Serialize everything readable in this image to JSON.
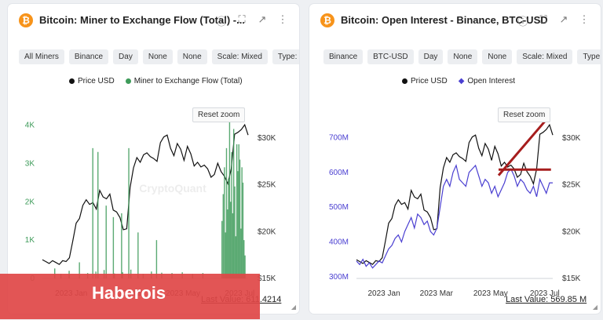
{
  "panels": [
    {
      "title": "Bitcoin: Miner to Exchange Flow (Total) -...",
      "filters": [
        "All Miners",
        "Binance",
        "Day",
        "None",
        "None",
        "Scale: Mixed",
        "Type: Bar"
      ],
      "legend": [
        {
          "label": "Price USD",
          "color": "#111111"
        },
        {
          "label": "Miner to Exchange Flow (Total)",
          "color": "#3e9b5a"
        }
      ],
      "reset_label": "Reset zoom",
      "watermark": "CryptoQuant",
      "last_value": "Last Value: 611.4214",
      "icons": [
        "info-icon",
        "expand-icon",
        "external-link-icon",
        "more-icon"
      ]
    },
    {
      "title": "Bitcoin: Open Interest - Binance, BTC-USD",
      "filters": [
        "Binance",
        "BTC-USD",
        "Day",
        "None",
        "None",
        "Scale: Mixed",
        "Type: Line"
      ],
      "legend": [
        {
          "label": "Price USD",
          "color": "#111111"
        },
        {
          "label": "Open Interest",
          "color": "#4a3fd1"
        }
      ],
      "reset_label": "Reset zoom",
      "last_value": "Last Value: 569.85 M",
      "icons": [
        "info-icon",
        "expand-icon",
        "external-link-icon",
        "more-icon"
      ]
    }
  ],
  "banner_text": "Haberois",
  "chart_data": [
    {
      "type": "bar",
      "title": "Bitcoin: Miner to Exchange Flow (Total)",
      "x_ticks": [
        "2023 Jan",
        "2023 Mar",
        "2023 May",
        "2023 Jul"
      ],
      "x_domain": [
        "2022-12-01",
        "2023-07-10"
      ],
      "y_left": {
        "ticks": [
          "0",
          "1K",
          "2K",
          "3K",
          "4K"
        ],
        "values": [
          0,
          1000,
          2000,
          3000,
          4000
        ],
        "range": [
          0,
          4400
        ],
        "color": "#3e9b5a"
      },
      "y_right": {
        "ticks": [
          "$15K",
          "$20K",
          "$25K",
          "$30K"
        ],
        "values": [
          15,
          20,
          25,
          30
        ],
        "range": [
          15,
          33
        ]
      },
      "series": [
        {
          "name": "Price USD",
          "color": "#111111",
          "values_k": [
            17.0,
            16.8,
            16.6,
            16.9,
            16.7,
            16.5,
            16.9,
            16.8,
            17.2,
            19.0,
            20.9,
            21.4,
            22.8,
            23.4,
            22.9,
            23.1,
            22.4,
            24.4,
            23.7,
            23.5,
            24.0,
            22.3,
            22.1,
            21.5,
            20.2,
            20.3,
            24.7,
            26.8,
            27.9,
            27.4,
            28.2,
            28.4,
            28.0,
            27.8,
            27.5,
            29.5,
            30.1,
            30.3,
            28.9,
            28.1,
            29.4,
            28.8,
            27.6,
            29.1,
            28.3,
            27.0,
            27.4,
            26.9,
            27.1,
            26.7,
            25.8,
            26.1,
            27.3,
            26.4,
            25.9,
            25.1,
            26.7,
            30.4,
            30.6,
            30.9,
            31.4,
            30.3
          ]
        },
        {
          "name": "Miner to Exchange Flow (Total)",
          "color": "#3e9b5a",
          "bars": [
            {
              "pos": 0.06,
              "value": 260
            },
            {
              "pos": 0.09,
              "value": 120
            },
            {
              "pos": 0.13,
              "value": 200
            },
            {
              "pos": 0.18,
              "value": 420
            },
            {
              "pos": 0.22,
              "value": 140
            },
            {
              "pos": 0.26,
              "value": 180
            },
            {
              "pos": 0.3,
              "value": 220
            },
            {
              "pos": 0.35,
              "value": 130
            },
            {
              "pos": 0.39,
              "value": 160
            },
            {
              "pos": 0.43,
              "value": 230
            },
            {
              "pos": 0.49,
              "value": 120
            },
            {
              "pos": 0.53,
              "value": 180
            },
            {
              "pos": 0.58,
              "value": 150
            },
            {
              "pos": 0.63,
              "value": 140
            },
            {
              "pos": 0.68,
              "value": 160
            },
            {
              "pos": 0.73,
              "value": 120
            },
            {
              "pos": 0.78,
              "value": 140
            },
            {
              "pos": 0.245,
              "value": 3400
            },
            {
              "pos": 0.27,
              "value": 3300
            },
            {
              "pos": 0.31,
              "value": 1900
            },
            {
              "pos": 0.345,
              "value": 1600
            },
            {
              "pos": 0.385,
              "value": 1700
            },
            {
              "pos": 0.42,
              "value": 3400
            },
            {
              "pos": 0.465,
              "value": 1200
            },
            {
              "pos": 0.555,
              "value": 1000
            },
            {
              "pos": 0.873,
              "value": 1500
            },
            {
              "pos": 0.879,
              "value": 2200
            },
            {
              "pos": 0.885,
              "value": 2900
            },
            {
              "pos": 0.89,
              "value": 1200
            },
            {
              "pos": 0.895,
              "value": 3400
            },
            {
              "pos": 0.9,
              "value": 1800
            },
            {
              "pos": 0.905,
              "value": 2600
            },
            {
              "pos": 0.91,
              "value": 4100
            },
            {
              "pos": 0.915,
              "value": 2000
            },
            {
              "pos": 0.92,
              "value": 3300
            },
            {
              "pos": 0.925,
              "value": 1700
            },
            {
              "pos": 0.93,
              "value": 3900
            },
            {
              "pos": 0.935,
              "value": 2400
            },
            {
              "pos": 0.94,
              "value": 1100
            },
            {
              "pos": 0.945,
              "value": 3500
            },
            {
              "pos": 0.95,
              "value": 2800
            },
            {
              "pos": 0.955,
              "value": 3500
            },
            {
              "pos": 0.96,
              "value": 3100
            },
            {
              "pos": 0.965,
              "value": 1300
            },
            {
              "pos": 0.97,
              "value": 2900
            },
            {
              "pos": 0.975,
              "value": 2500
            },
            {
              "pos": 0.98,
              "value": 1000
            },
            {
              "pos": 0.985,
              "value": 600
            }
          ]
        }
      ]
    },
    {
      "type": "line",
      "title": "Bitcoin: Open Interest - Binance, BTC-USD",
      "x_ticks": [
        "2023 Jan",
        "2023 Mar",
        "2023 May",
        "2023 Jul"
      ],
      "x_domain": [
        "2022-12-01",
        "2023-07-10"
      ],
      "y_left": {
        "ticks": [
          "300M",
          "400M",
          "500M",
          "600M",
          "700M"
        ],
        "values": [
          300,
          400,
          500,
          600,
          700
        ],
        "range": [
          295,
          780
        ],
        "color": "#4a3fd1"
      },
      "y_right": {
        "ticks": [
          "$15K",
          "$20K",
          "$25K",
          "$30K"
        ],
        "values": [
          15,
          20,
          25,
          30
        ],
        "range": [
          15,
          33
        ]
      },
      "series": [
        {
          "name": "Price USD",
          "color": "#111111",
          "values_k": [
            17.0,
            16.8,
            16.6,
            16.9,
            16.7,
            16.5,
            16.9,
            16.8,
            17.2,
            19.0,
            20.9,
            21.4,
            22.8,
            23.4,
            22.9,
            23.1,
            22.4,
            24.4,
            23.7,
            23.5,
            24.0,
            22.3,
            22.1,
            21.5,
            20.2,
            20.3,
            24.7,
            26.8,
            27.9,
            27.4,
            28.2,
            28.4,
            28.0,
            27.8,
            27.5,
            29.5,
            30.1,
            30.3,
            28.9,
            28.1,
            29.4,
            28.8,
            27.6,
            29.1,
            28.3,
            27.0,
            27.4,
            26.9,
            27.1,
            26.7,
            25.8,
            26.1,
            27.3,
            26.4,
            25.9,
            25.1,
            26.7,
            30.4,
            30.6,
            30.9,
            31.4,
            30.3
          ]
        },
        {
          "name": "Open Interest",
          "color": "#4a3fd1",
          "values_m": [
            345,
            335,
            350,
            330,
            340,
            325,
            335,
            345,
            340,
            360,
            380,
            390,
            410,
            420,
            400,
            430,
            450,
            470,
            440,
            480,
            470,
            450,
            460,
            430,
            420,
            440,
            500,
            560,
            580,
            560,
            600,
            620,
            580,
            570,
            560,
            600,
            610,
            620,
            590,
            560,
            580,
            570,
            540,
            560,
            530,
            550,
            570,
            600,
            610,
            590,
            560,
            580,
            570,
            550,
            540,
            560,
            530,
            580,
            560,
            540,
            570,
            570
          ]
        }
      ],
      "annotations": [
        {
          "type": "trend-line",
          "color": "#a61d1d",
          "from": {
            "date": "2023-05-10",
            "value_k": 26.0
          },
          "to": {
            "date": "2023-07-05",
            "value_k": 32.2
          }
        },
        {
          "type": "horizontal-line",
          "color": "#a61d1d",
          "from": {
            "date": "2023-05-10",
            "value_m": 608
          },
          "to": {
            "date": "2023-07-08",
            "value_m": 608
          }
        }
      ]
    }
  ]
}
